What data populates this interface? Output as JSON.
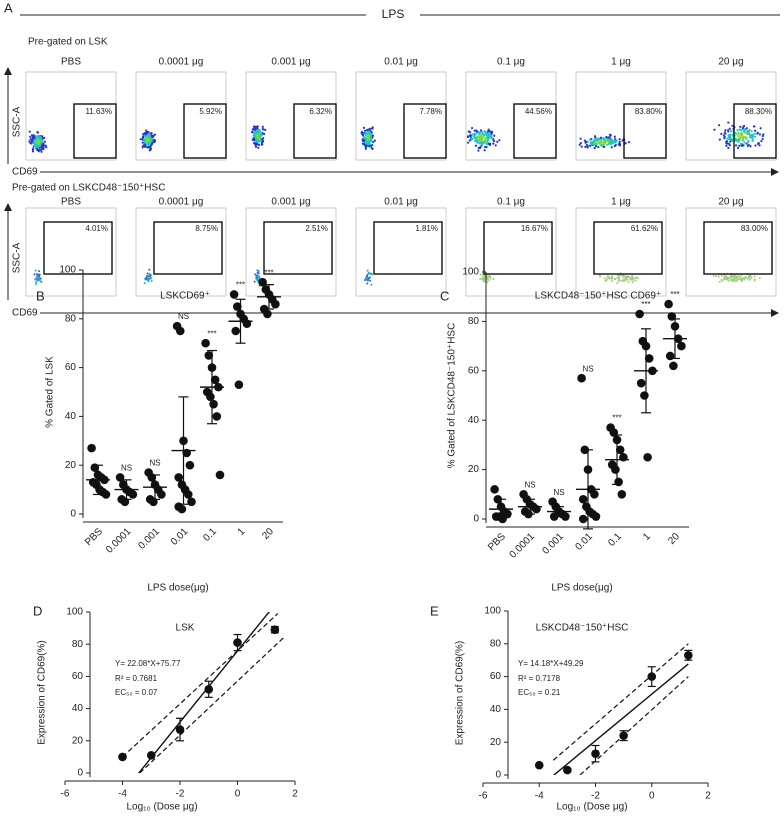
{
  "panel_a": {
    "letter": "A",
    "title": "LPS",
    "y_axis": "SSC-A",
    "x_axis": "CD69",
    "rows": [
      {
        "label": "Pre-gated on LSK",
        "plots": [
          {
            "dose": "PBS",
            "gate": "11.63%"
          },
          {
            "dose": "0.0001 μg",
            "gate": "5.92%"
          },
          {
            "dose": "0.001 μg",
            "gate": "6.32%"
          },
          {
            "dose": "0.01 μg",
            "gate": "7.78%"
          },
          {
            "dose": "0.1 μg",
            "gate": "44.56%"
          },
          {
            "dose": "1 μg",
            "gate": "83.80%"
          },
          {
            "dose": "20 μg",
            "gate": "88.30%"
          }
        ]
      },
      {
        "label": "Pre-gated on LSKCD48⁻150⁺HSC",
        "plots": [
          {
            "dose": "PBS",
            "gate": "4.01%"
          },
          {
            "dose": "0.0001 μg",
            "gate": "8.75%"
          },
          {
            "dose": "0.001 μg",
            "gate": "2.51%"
          },
          {
            "dose": "0.01 μg",
            "gate": "1.81%"
          },
          {
            "dose": "0.1 μg",
            "gate": "16.67%"
          },
          {
            "dose": "1 μg",
            "gate": "61.62%"
          },
          {
            "dose": "20 μg",
            "gate": "83.00%"
          }
        ]
      }
    ]
  },
  "chart_data": [
    {
      "letter": "B",
      "type": "dot",
      "title": "LSKCD69⁺",
      "ylabel": "% Gated of LSK",
      "xlabel": "LPS dose(μg)",
      "categories": [
        "PBS",
        "0.0001",
        "0.001",
        "0.01",
        "0.1",
        "1",
        "20"
      ],
      "points": [
        [
          27,
          19,
          16,
          15,
          14,
          13,
          12,
          10,
          9,
          8
        ],
        [
          15,
          12,
          10,
          9,
          8,
          6,
          5
        ],
        [
          17,
          15,
          12,
          10,
          8,
          6,
          5
        ],
        [
          77,
          75,
          30,
          25,
          20,
          15,
          12,
          10,
          8,
          5,
          3,
          2
        ],
        [
          70,
          65,
          60,
          55,
          52,
          50,
          48,
          45,
          40,
          16
        ],
        [
          90,
          85,
          82,
          80,
          78,
          75,
          53
        ],
        [
          95,
          92,
          90,
          88,
          86,
          84,
          82
        ]
      ],
      "mean": [
        14,
        10,
        11,
        26,
        52,
        79,
        89
      ],
      "sd": [
        6,
        4,
        5,
        22,
        15,
        9,
        5
      ],
      "significance": [
        null,
        "NS",
        "NS",
        "NS",
        "***",
        "***",
        "***"
      ],
      "ylim": [
        0,
        100
      ],
      "yticks": [
        0,
        20,
        40,
        60,
        80,
        100
      ]
    },
    {
      "letter": "C",
      "type": "dot",
      "title": "LSKCD48⁻150⁺HSC CD69⁺",
      "ylabel": "% Gated of LSKCD48⁻150⁺HSC",
      "xlabel": "LPS dose(μg)",
      "categories": [
        "PBS",
        "0.0001",
        "0.001",
        "0.01",
        "0.1",
        "1",
        "20"
      ],
      "points": [
        [
          12,
          8,
          5,
          3,
          2,
          1,
          1,
          0
        ],
        [
          10,
          8,
          6,
          5,
          4,
          3,
          2
        ],
        [
          7,
          5,
          3,
          2,
          1,
          1
        ],
        [
          57,
          28,
          20,
          12,
          10,
          8,
          5,
          3,
          2,
          1,
          0
        ],
        [
          37,
          35,
          32,
          28,
          25,
          22,
          20,
          15,
          10
        ],
        [
          83,
          72,
          70,
          65,
          60,
          55,
          50,
          25
        ],
        [
          87,
          82,
          78,
          73,
          70,
          66,
          62
        ]
      ],
      "mean": [
        4,
        5,
        3,
        12,
        24,
        60,
        73
      ],
      "sd": [
        4,
        3,
        2,
        16,
        10,
        17,
        8
      ],
      "significance": [
        null,
        "NS",
        "NS",
        "NS",
        "***",
        "***",
        "***"
      ],
      "ylim": [
        0,
        100
      ],
      "yticks": [
        0,
        20,
        40,
        60,
        80,
        100
      ]
    },
    {
      "letter": "D",
      "type": "regression",
      "title": "LSK",
      "xlabel": "Log₁₀ (Dose μg)",
      "ylabel": "Expression of CD69(%)",
      "x": [
        -4,
        -3,
        -2,
        -1,
        0,
        1.3
      ],
      "y": [
        10,
        11,
        27,
        52,
        81,
        89
      ],
      "error": [
        null,
        null,
        7,
        5,
        5,
        2
      ],
      "fit": {
        "slope": 22.08,
        "intercept": 75.77,
        "label": "Y= 22.08*X+75.77"
      },
      "r_squared": "R² = 0.7681",
      "ec50": "EC₅₀ = 0.07",
      "ci": {
        "upper": {
          "x": [
            -4,
            1.4
          ],
          "y": [
            10,
            99
          ]
        },
        "lower": {
          "x": [
            -3.4,
            1.6
          ],
          "y": [
            0,
            84
          ]
        }
      },
      "xlim": [
        -6,
        2
      ],
      "xticks": [
        -6,
        -4,
        -2,
        0,
        2
      ],
      "ylim": [
        0,
        100
      ],
      "yticks": [
        0,
        20,
        40,
        60,
        80,
        100
      ]
    },
    {
      "letter": "E",
      "type": "regression",
      "title": "LSKCD48⁻150⁺HSC",
      "xlabel": "Log₁₀ (Dose μg)",
      "ylabel": "Expression of CD69(%)",
      "x": [
        -4,
        -3,
        -2,
        -1,
        0,
        1.3
      ],
      "y": [
        6,
        3,
        13,
        24,
        60,
        73
      ],
      "error": [
        null,
        null,
        5,
        3,
        6,
        3
      ],
      "fit": {
        "slope": 14.18,
        "intercept": 49.29,
        "label": "Y= 14.18*X+49.29"
      },
      "r_squared": "R² = 0.7178",
      "ec50": "EC₅₀ = 0.21",
      "ci": {
        "upper": {
          "x": [
            -3.5,
            1.3
          ],
          "y": [
            9,
            80
          ]
        },
        "lower": {
          "x": [
            -2.55,
            1.3
          ],
          "y": [
            0,
            60
          ]
        }
      },
      "xlim": [
        -6,
        2
      ],
      "xticks": [
        -6,
        -4,
        -2,
        0,
        2
      ],
      "ylim": [
        0,
        100
      ],
      "yticks": [
        0,
        20,
        40,
        60,
        80,
        100
      ]
    }
  ]
}
